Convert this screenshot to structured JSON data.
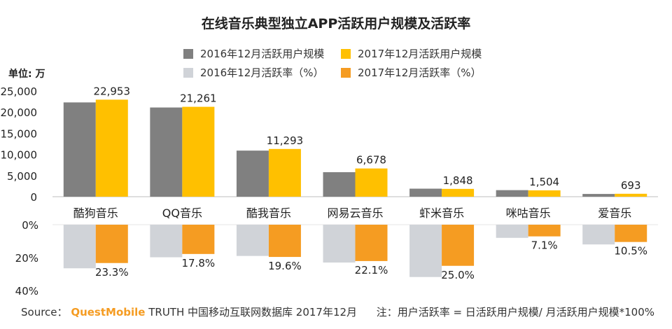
{
  "title": "在线音乐典型独立APP活跃用户规模及活跃率",
  "unit_label": "单位: 万",
  "colors": {
    "mau_2016": "#808080",
    "mau_2017": "#FFC000",
    "rate_2016": "#D0D3D8",
    "rate_2017": "#F59C22",
    "text": "#222222",
    "axis": "#bdbdbd",
    "source_brand": "#F59C22"
  },
  "chart_data": [
    {
      "type": "bar",
      "categories": [
        "酷狗音乐",
        "QQ音乐",
        "酷我音乐",
        "网易云音乐",
        "虾米音乐",
        "咪咕音乐",
        "爱音乐"
      ],
      "series": [
        {
          "name": "2016年12月活跃用户规模",
          "values": [
            22300,
            21100,
            10900,
            5800,
            1900,
            1550,
            650
          ]
        },
        {
          "name": "2017年12月活跃用户规模",
          "values": [
            22953,
            21261,
            11293,
            6678,
            1848,
            1504,
            693
          ]
        }
      ],
      "data_labels": [
        "22,953",
        "21,261",
        "11,293",
        "6,678",
        "1,848",
        "1,504",
        "693"
      ],
      "y_ticks": [
        "25,000",
        "20,000",
        "15,000",
        "10,000",
        "5,000",
        "0"
      ],
      "ylim": [
        0,
        25000
      ],
      "grid": false
    },
    {
      "type": "bar",
      "categories": [
        "酷狗音乐",
        "QQ音乐",
        "酷我音乐",
        "网易云音乐",
        "虾米音乐",
        "咪咕音乐",
        "爱音乐"
      ],
      "series": [
        {
          "name": "2016年12月活跃率（%）",
          "values": [
            26.5,
            19.8,
            19.0,
            23.0,
            31.8,
            8.0,
            12.0
          ]
        },
        {
          "name": "2017年12月活跃率（%）",
          "values": [
            23.3,
            17.8,
            19.6,
            22.1,
            25.0,
            7.1,
            10.5
          ]
        }
      ],
      "data_labels": [
        "23.3%",
        "17.8%",
        "19.6%",
        "22.1%",
        "25.0%",
        "7.1%",
        "10.5%"
      ],
      "y_ticks": [
        "0%",
        "20%",
        "40%"
      ],
      "ylim": [
        0,
        40
      ],
      "inverted": true,
      "grid": false
    }
  ],
  "source": {
    "prefix": "Source：",
    "brand": "QuestMobile",
    "rest": " TRUTH 中国移动互联网数据库 2017年12月"
  },
  "note": "注：用户活跃率 = 日活跃用户规模/ 月活跃用户规模*100%"
}
